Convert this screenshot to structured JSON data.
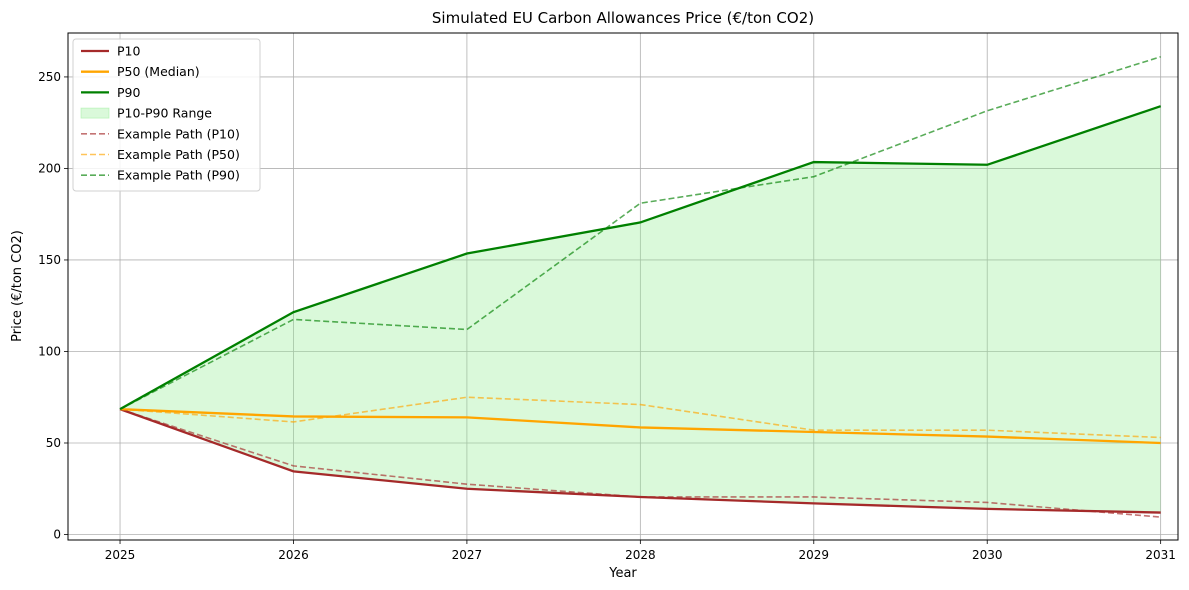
{
  "chart_data": {
    "type": "line",
    "title": "Simulated EU Carbon Allowances Price (€/ton CO2)",
    "xlabel": "Year",
    "ylabel": "Price (€/ton CO2)",
    "x": [
      2025,
      2026,
      2027,
      2028,
      2029,
      2030,
      2031
    ],
    "xlim": [
      2024.7,
      2031.1
    ],
    "ylim": [
      -3,
      274
    ],
    "yticks": [
      0,
      50,
      100,
      150,
      200,
      250
    ],
    "grid": true,
    "legend_position": "top-left",
    "series": [
      {
        "name": "P10",
        "values": [
          68.5,
          34.5,
          25.0,
          20.5,
          17.0,
          14.0,
          12.0
        ],
        "color": "#a52a2a",
        "style": "solid"
      },
      {
        "name": "P50 (Median)",
        "values": [
          68.5,
          64.5,
          64.0,
          58.5,
          56.0,
          53.5,
          50.0
        ],
        "color": "#ffa500",
        "style": "solid"
      },
      {
        "name": "P90",
        "values": [
          68.5,
          121.5,
          153.5,
          170.5,
          203.5,
          202.0,
          234.0
        ],
        "color": "#008000",
        "style": "solid"
      },
      {
        "name": "Example Path (P10)",
        "values": [
          68.5,
          37.5,
          27.5,
          20.5,
          20.5,
          17.5,
          9.5
        ],
        "color": "#a52a2a",
        "style": "dashed"
      },
      {
        "name": "Example Path (P50)",
        "values": [
          68.5,
          61.5,
          75.0,
          71.0,
          57.0,
          57.0,
          53.0
        ],
        "color": "#ffa500",
        "style": "dashed"
      },
      {
        "name": "Example Path (P90)",
        "values": [
          68.5,
          117.5,
          112.0,
          181.0,
          195.5,
          231.5,
          261.0
        ],
        "color": "#008000",
        "style": "dashed"
      }
    ],
    "range_band": {
      "name": "P10-P90 Range",
      "lower": "P10",
      "upper": "P90",
      "color": "#90ee90"
    },
    "legend": [
      "P10",
      "P50 (Median)",
      "P90",
      "P10-P90 Range",
      "Example Path (P10)",
      "Example Path (P50)",
      "Example Path (P90)"
    ]
  }
}
